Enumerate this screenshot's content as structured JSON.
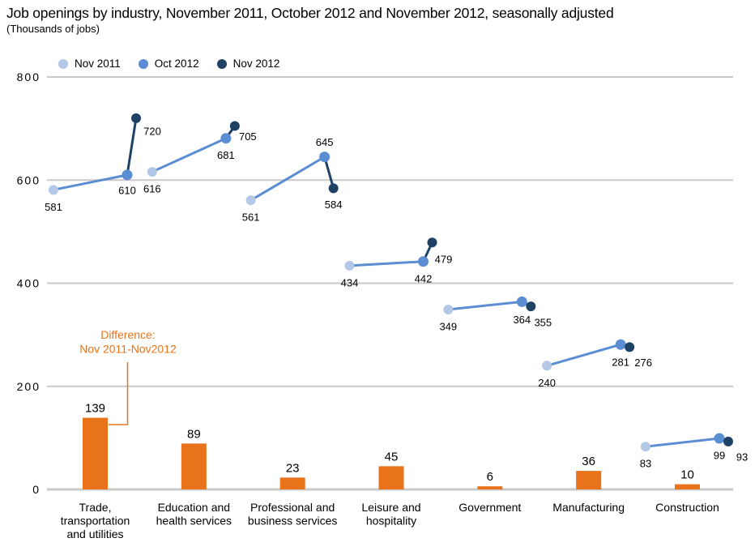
{
  "chart_data": {
    "type": "scatter",
    "subtype": "dot-plot-with-difference-bars",
    "title": "Job openings by industry, November 2011, October 2012 and November 2012, seasonally adjusted",
    "subtitle": "(Thousands of jobs)",
    "background": "#ffffff",
    "grid": "horizontal",
    "grid_color": "#c9c9c9",
    "legend_position": "top-left",
    "ylim": [
      0,
      800
    ],
    "yticks": [
      0,
      200,
      400,
      600,
      800
    ],
    "categories": [
      "Trade, transportation and utilities",
      "Education and health services",
      "Professional and business services",
      "Leisure and hospitality",
      "Government",
      "Manufacturing",
      "Construction"
    ],
    "category_label_lines": [
      [
        "Trade,",
        "transportation",
        "and utilities"
      ],
      [
        "Education and",
        "health services"
      ],
      [
        "Professional and",
        "business services"
      ],
      [
        "Leisure and",
        "hospitality"
      ],
      [
        "Government"
      ],
      [
        "Manufacturing"
      ],
      [
        "Construction"
      ]
    ],
    "series": [
      {
        "name": "Nov 2011",
        "color": "#b3c7e6",
        "values": [
          581,
          616,
          561,
          434,
          349,
          240,
          83
        ]
      },
      {
        "name": "Oct 2012",
        "color": "#5b8dd3",
        "values": [
          610,
          681,
          645,
          442,
          364,
          281,
          99
        ]
      },
      {
        "name": "Nov 2012",
        "color": "#1e4164",
        "values": [
          720,
          705,
          584,
          479,
          355,
          276,
          93
        ]
      }
    ],
    "difference_bars": {
      "name": "Difference: Nov 2011-Nov2012",
      "color": "#e8731a",
      "values": [
        139,
        89,
        23,
        45,
        6,
        36,
        10
      ]
    },
    "annotation": {
      "lines": [
        "Difference:",
        "Nov 2011-Nov2012"
      ],
      "color": "#e8731a"
    },
    "label_offsets": [
      [
        [
          0,
          21
        ],
        [
          0,
          21
        ],
        [
          0,
          21
        ],
        [
          0,
          21
        ],
        [
          0,
          21
        ],
        [
          0,
          21
        ],
        [
          0,
          21
        ]
      ],
      [
        [
          0,
          19
        ],
        [
          0,
          21
        ],
        [
          0,
          -18
        ],
        [
          0,
          21
        ],
        [
          0,
          22
        ],
        [
          0,
          22
        ],
        [
          0,
          21
        ]
      ],
      [
        [
          20,
          16
        ],
        [
          16,
          13
        ],
        [
          0,
          20
        ],
        [
          14,
          21
        ],
        [
          15,
          20
        ],
        [
          17,
          19
        ],
        [
          17,
          19
        ]
      ]
    ]
  }
}
